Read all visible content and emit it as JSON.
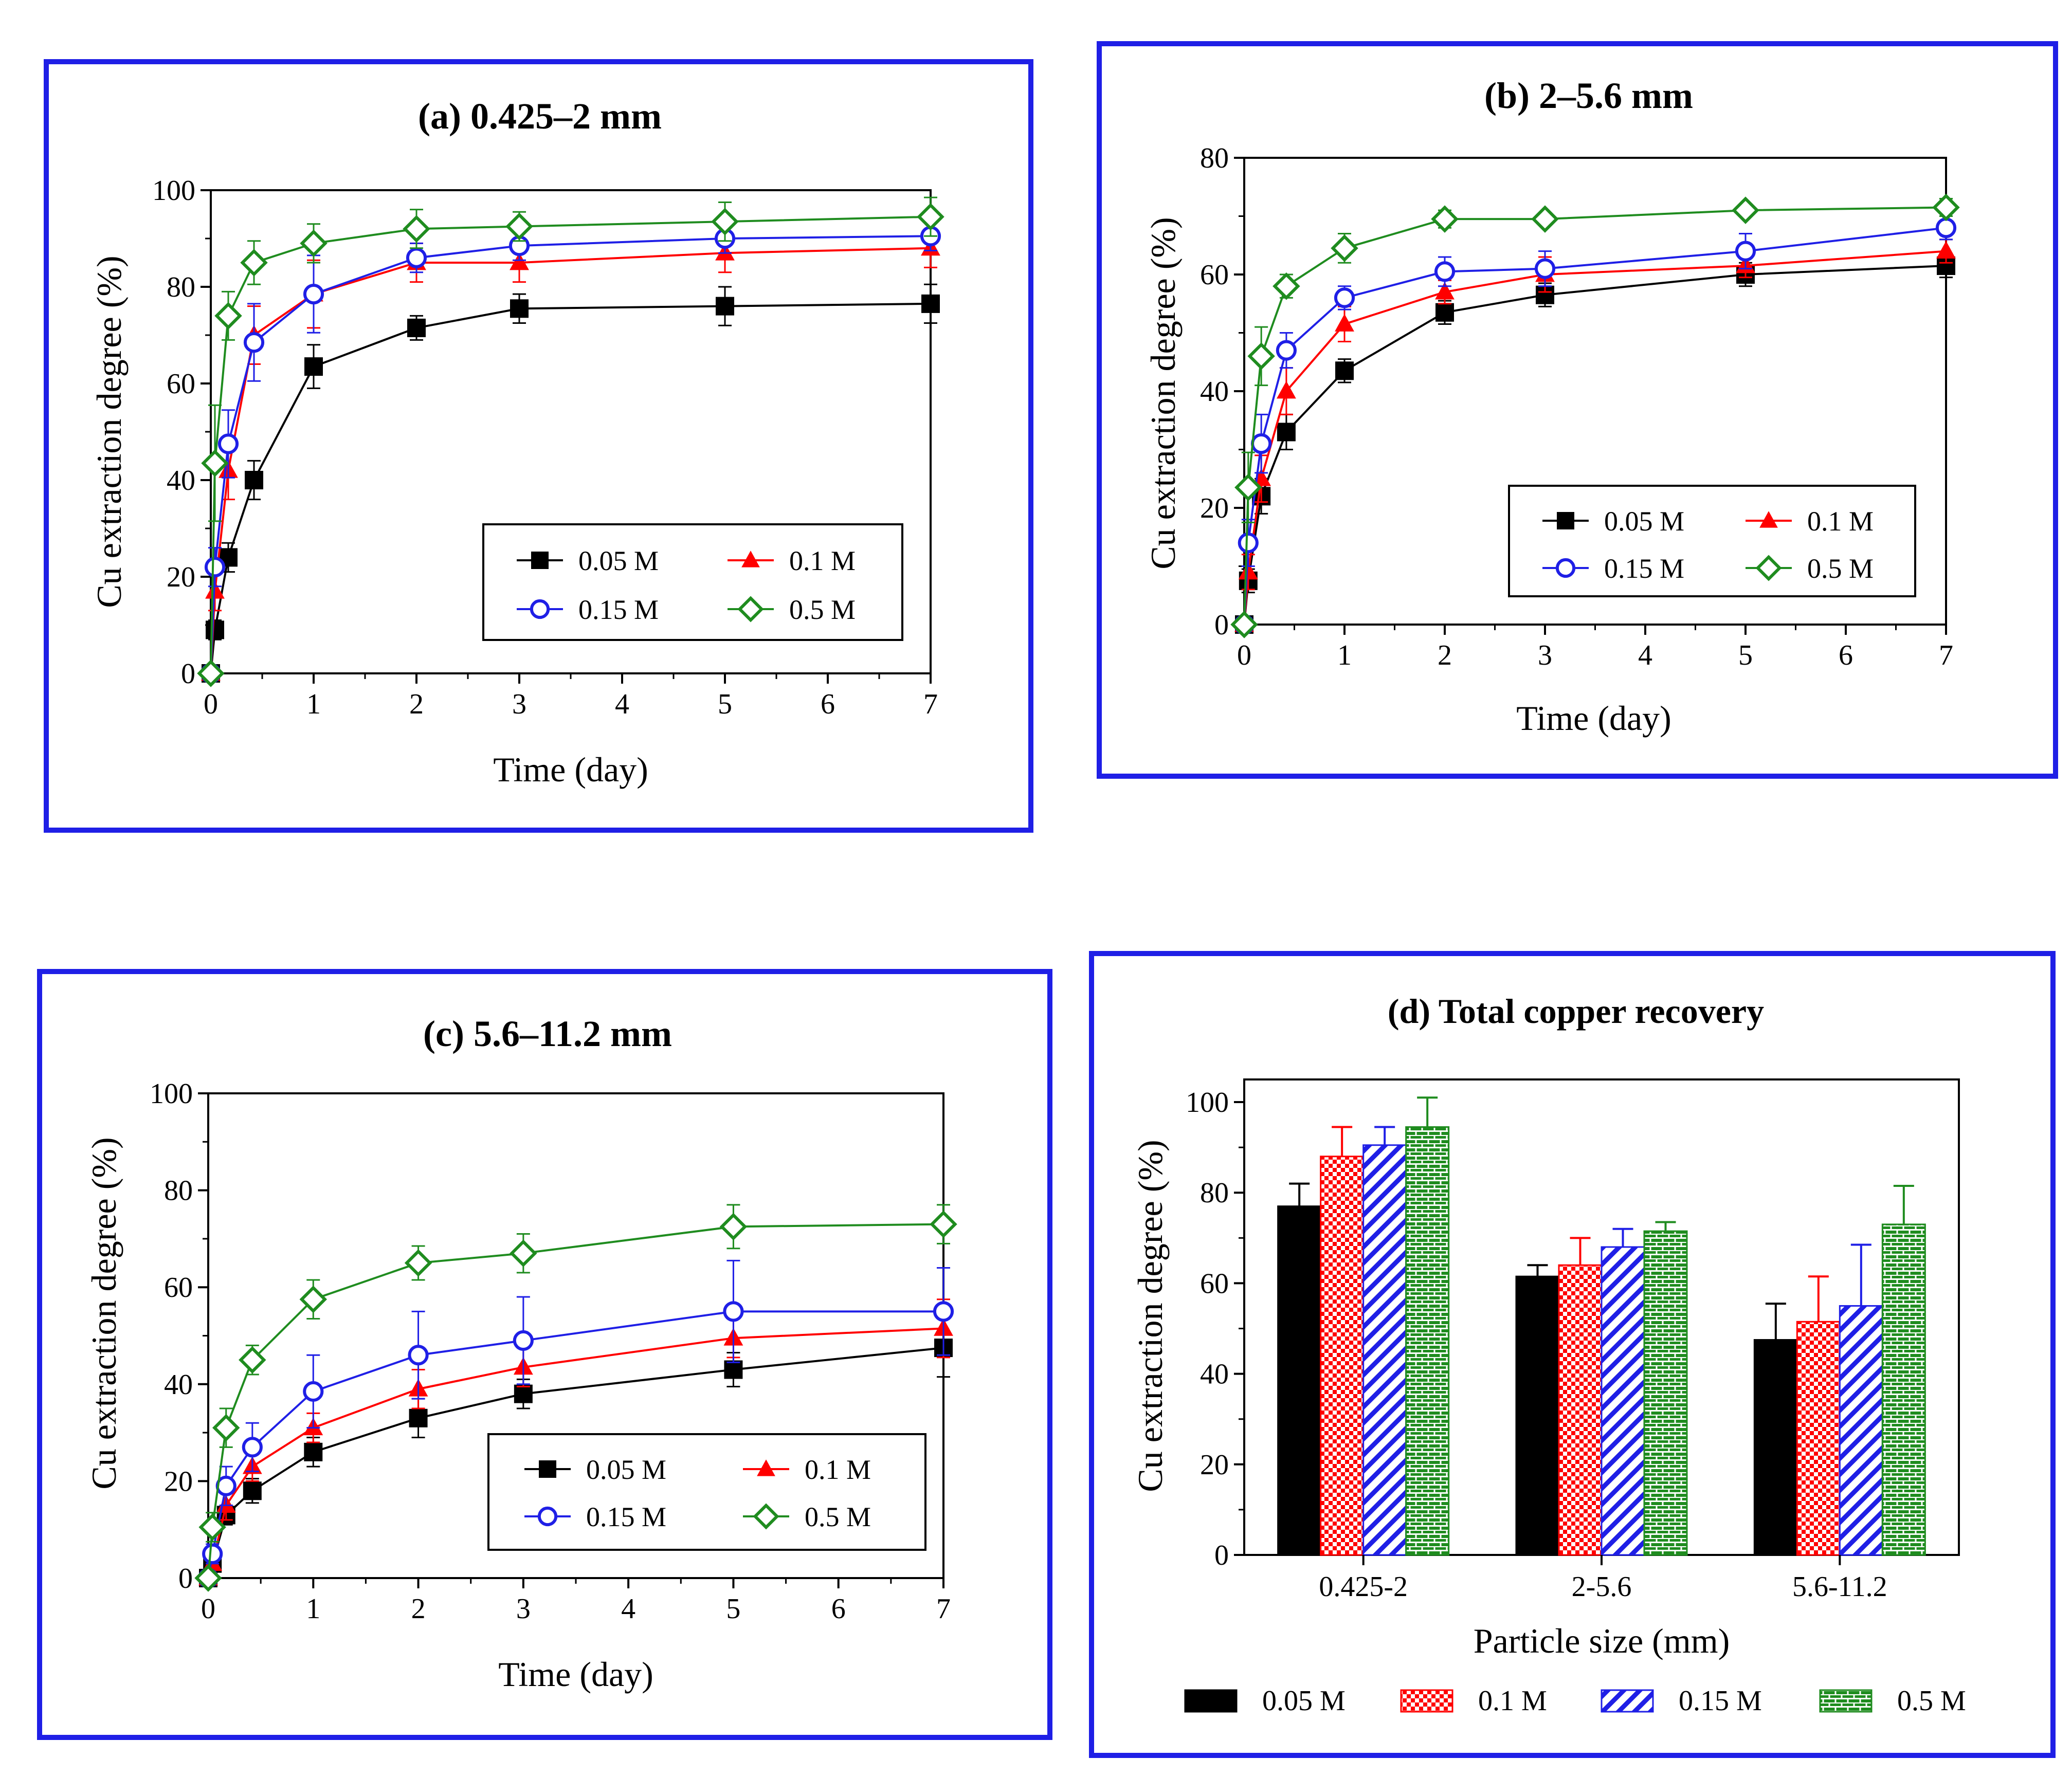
{
  "colors": {
    "frame": "#1f1fe6",
    "s005": "#000000",
    "s01": "#ff0000",
    "s015": "#1f1fe6",
    "s05": "#1f8c1f"
  },
  "chart_data": [
    {
      "id": "a",
      "type": "line",
      "title": "(a) 0.425–2 mm",
      "xlabel": "Time (day)",
      "ylabel": "Cu extraction degree (%)",
      "xlim": [
        0,
        7
      ],
      "ylim": [
        0,
        100
      ],
      "xticks": [
        0,
        1,
        2,
        3,
        4,
        5,
        6,
        7
      ],
      "xtick_labels": [
        "0",
        "1",
        "2",
        "3",
        "4",
        "5",
        "6",
        "7"
      ],
      "yticks": [
        0,
        20,
        40,
        60,
        80,
        100
      ],
      "ytick_labels": [
        "0",
        "20",
        "40",
        "60",
        "80",
        "100"
      ],
      "legend": [
        "0.05 M",
        "0.1 M",
        "0.15 M",
        "0.5 M"
      ],
      "series": [
        {
          "name": "0.05 M",
          "marker": "square",
          "x": [
            0,
            0.04,
            0.17,
            0.42,
            1,
            2,
            3,
            5,
            7
          ],
          "y": [
            0,
            9,
            24,
            40,
            63.5,
            71.5,
            75.5,
            76,
            76.5
          ],
          "err": [
            0,
            2,
            3,
            4,
            4.5,
            2.5,
            3,
            4,
            4
          ]
        },
        {
          "name": "0.1 M",
          "marker": "triangle",
          "x": [
            0,
            0.04,
            0.17,
            0.42,
            1,
            2,
            3,
            5,
            7
          ],
          "y": [
            0,
            17,
            42,
            70,
            78.5,
            85,
            85,
            87,
            88
          ],
          "err": [
            0,
            4,
            6,
            6,
            7,
            4,
            4,
            4,
            4
          ]
        },
        {
          "name": "0.15 M",
          "marker": "circle",
          "x": [
            0,
            0.04,
            0.17,
            0.42,
            1,
            2,
            3,
            5,
            7
          ],
          "y": [
            0,
            22,
            47.5,
            68.5,
            78.5,
            86,
            88.5,
            90,
            90.5
          ],
          "err": [
            0,
            4,
            7,
            8,
            8,
            3,
            3,
            3,
            3
          ]
        },
        {
          "name": "0.5 M",
          "marker": "diamond",
          "x": [
            0,
            0.04,
            0.17,
            0.42,
            1,
            2,
            3,
            5,
            7
          ],
          "y": [
            0,
            43.5,
            74,
            85,
            89,
            92,
            92.5,
            93.5,
            94.5
          ],
          "err": [
            0,
            12,
            5,
            4.5,
            4,
            4,
            3,
            4,
            4
          ]
        }
      ]
    },
    {
      "id": "b",
      "type": "line",
      "title": "(b) 2–5.6 mm",
      "xlabel": "Time (day)",
      "ylabel": "Cu extraction degree (%)",
      "xlim": [
        0,
        7
      ],
      "ylim": [
        0,
        80
      ],
      "xticks": [
        0,
        1,
        2,
        3,
        4,
        5,
        6,
        7
      ],
      "xtick_labels": [
        "0",
        "1",
        "2",
        "3",
        "4",
        "5",
        "6",
        "7"
      ],
      "yticks": [
        0,
        20,
        40,
        60,
        80
      ],
      "ytick_labels": [
        "0",
        "20",
        "40",
        "60",
        "80"
      ],
      "legend": [
        "0.05 M",
        "0.1 M",
        "0.15 M",
        "0.5 M"
      ],
      "series": [
        {
          "name": "0.05 M",
          "marker": "square",
          "x": [
            0,
            0.04,
            0.17,
            0.42,
            1,
            2,
            3,
            5,
            7
          ],
          "y": [
            0,
            7.5,
            22,
            33,
            43.5,
            53.5,
            56.5,
            60,
            61.5
          ],
          "err": [
            0,
            2,
            3,
            3,
            2,
            2,
            2,
            2,
            2
          ]
        },
        {
          "name": "0.1 M",
          "marker": "triangle",
          "x": [
            0,
            0.04,
            0.17,
            0.42,
            1,
            2,
            3,
            5,
            7
          ],
          "y": [
            0,
            9,
            25,
            40,
            51.5,
            57,
            60,
            61.5,
            64
          ],
          "err": [
            0,
            3,
            4,
            4,
            3,
            2,
            3,
            2,
            2
          ]
        },
        {
          "name": "0.15 M",
          "marker": "circle",
          "x": [
            0,
            0.04,
            0.17,
            0.42,
            1,
            2,
            3,
            5,
            7
          ],
          "y": [
            0,
            14,
            31,
            47,
            56,
            60.5,
            61,
            64,
            68
          ],
          "err": [
            0,
            4,
            5,
            3,
            2,
            2.5,
            3,
            3,
            2
          ]
        },
        {
          "name": "0.5 M",
          "marker": "diamond",
          "x": [
            0,
            0.04,
            0.17,
            0.42,
            1,
            2,
            3,
            5,
            7
          ],
          "y": [
            0,
            23.5,
            46,
            58,
            64.5,
            69.5,
            69.5,
            71,
            71.5
          ],
          "err": [
            0,
            6,
            5,
            2,
            2.5,
            1.5,
            1,
            1,
            1.5
          ]
        }
      ]
    },
    {
      "id": "c",
      "type": "line",
      "title": "(c) 5.6–11.2 mm",
      "xlabel": "Time (day)",
      "ylabel": "Cu extraction degree (%)",
      "xlim": [
        0,
        7
      ],
      "ylim": [
        0,
        100
      ],
      "xticks": [
        0,
        1,
        2,
        3,
        4,
        5,
        6,
        7
      ],
      "xtick_labels": [
        "0",
        "1",
        "2",
        "3",
        "4",
        "5",
        "6",
        "7"
      ],
      "yticks": [
        0,
        20,
        40,
        60,
        80,
        100
      ],
      "ytick_labels": [
        "0",
        "20",
        "40",
        "60",
        "80",
        "100"
      ],
      "legend": [
        "0.05 M",
        "0.1 M",
        "0.15 M",
        "0.5 M"
      ],
      "series": [
        {
          "name": "0.05 M",
          "marker": "square",
          "x": [
            0,
            0.04,
            0.17,
            0.42,
            1,
            2,
            3,
            5,
            7
          ],
          "y": [
            0,
            3,
            13,
            18,
            26,
            33,
            38,
            43,
            47.5
          ],
          "err": [
            0,
            1,
            2,
            2.5,
            3,
            4,
            3,
            3.5,
            6
          ]
        },
        {
          "name": "0.1 M",
          "marker": "triangle",
          "x": [
            0,
            0.04,
            0.17,
            0.42,
            1,
            2,
            3,
            5,
            7
          ],
          "y": [
            0,
            3,
            15,
            23,
            31,
            39,
            43.5,
            49.5,
            51.5
          ],
          "err": [
            0,
            1,
            3,
            3,
            3,
            4,
            4,
            4,
            6
          ]
        },
        {
          "name": "0.15 M",
          "marker": "circle",
          "x": [
            0,
            0.04,
            0.17,
            0.42,
            1,
            2,
            3,
            5,
            7
          ],
          "y": [
            0,
            5,
            19,
            27,
            38.5,
            46,
            49,
            55,
            55
          ],
          "err": [
            0,
            2,
            4,
            5,
            7.5,
            9,
            9,
            10.5,
            9
          ]
        },
        {
          "name": "0.5 M",
          "marker": "diamond",
          "x": [
            0,
            0.04,
            0.17,
            0.42,
            1,
            2,
            3,
            5,
            7
          ],
          "y": [
            0,
            10.5,
            31,
            45,
            57.5,
            65,
            67,
            72.5,
            73
          ],
          "err": [
            0,
            3,
            4,
            3,
            4,
            3.5,
            4,
            4.5,
            4
          ]
        }
      ]
    },
    {
      "id": "d",
      "type": "bar",
      "title": "(d) Total copper recovery",
      "xlabel": "Particle size (mm)",
      "ylabel": "Cu extraction degree (%)",
      "ylim": [
        0,
        105
      ],
      "yticks": [
        0,
        20,
        40,
        60,
        80,
        100
      ],
      "ytick_labels": [
        "0",
        "20",
        "40",
        "60",
        "80",
        "100"
      ],
      "categories": [
        "0.425-2",
        "2-5.6",
        "5.6-11.2"
      ],
      "legend": [
        "0.05 M",
        "0.1 M",
        "0.15 M",
        "0.5 M"
      ],
      "series": [
        {
          "name": "0.05 M",
          "pattern": "solid",
          "values": [
            77,
            61.5,
            47.5
          ],
          "err": [
            5,
            2.5,
            8
          ]
        },
        {
          "name": "0.1 M",
          "pattern": "checker",
          "values": [
            88,
            64,
            51.5
          ],
          "err": [
            6.5,
            6,
            10
          ]
        },
        {
          "name": "0.15 M",
          "pattern": "hatch",
          "values": [
            90.5,
            68,
            55
          ],
          "err": [
            4,
            4,
            13.5
          ]
        },
        {
          "name": "0.5 M",
          "pattern": "brick",
          "values": [
            94.5,
            71.5,
            73
          ],
          "err": [
            6.5,
            2,
            8.5
          ]
        }
      ]
    }
  ]
}
